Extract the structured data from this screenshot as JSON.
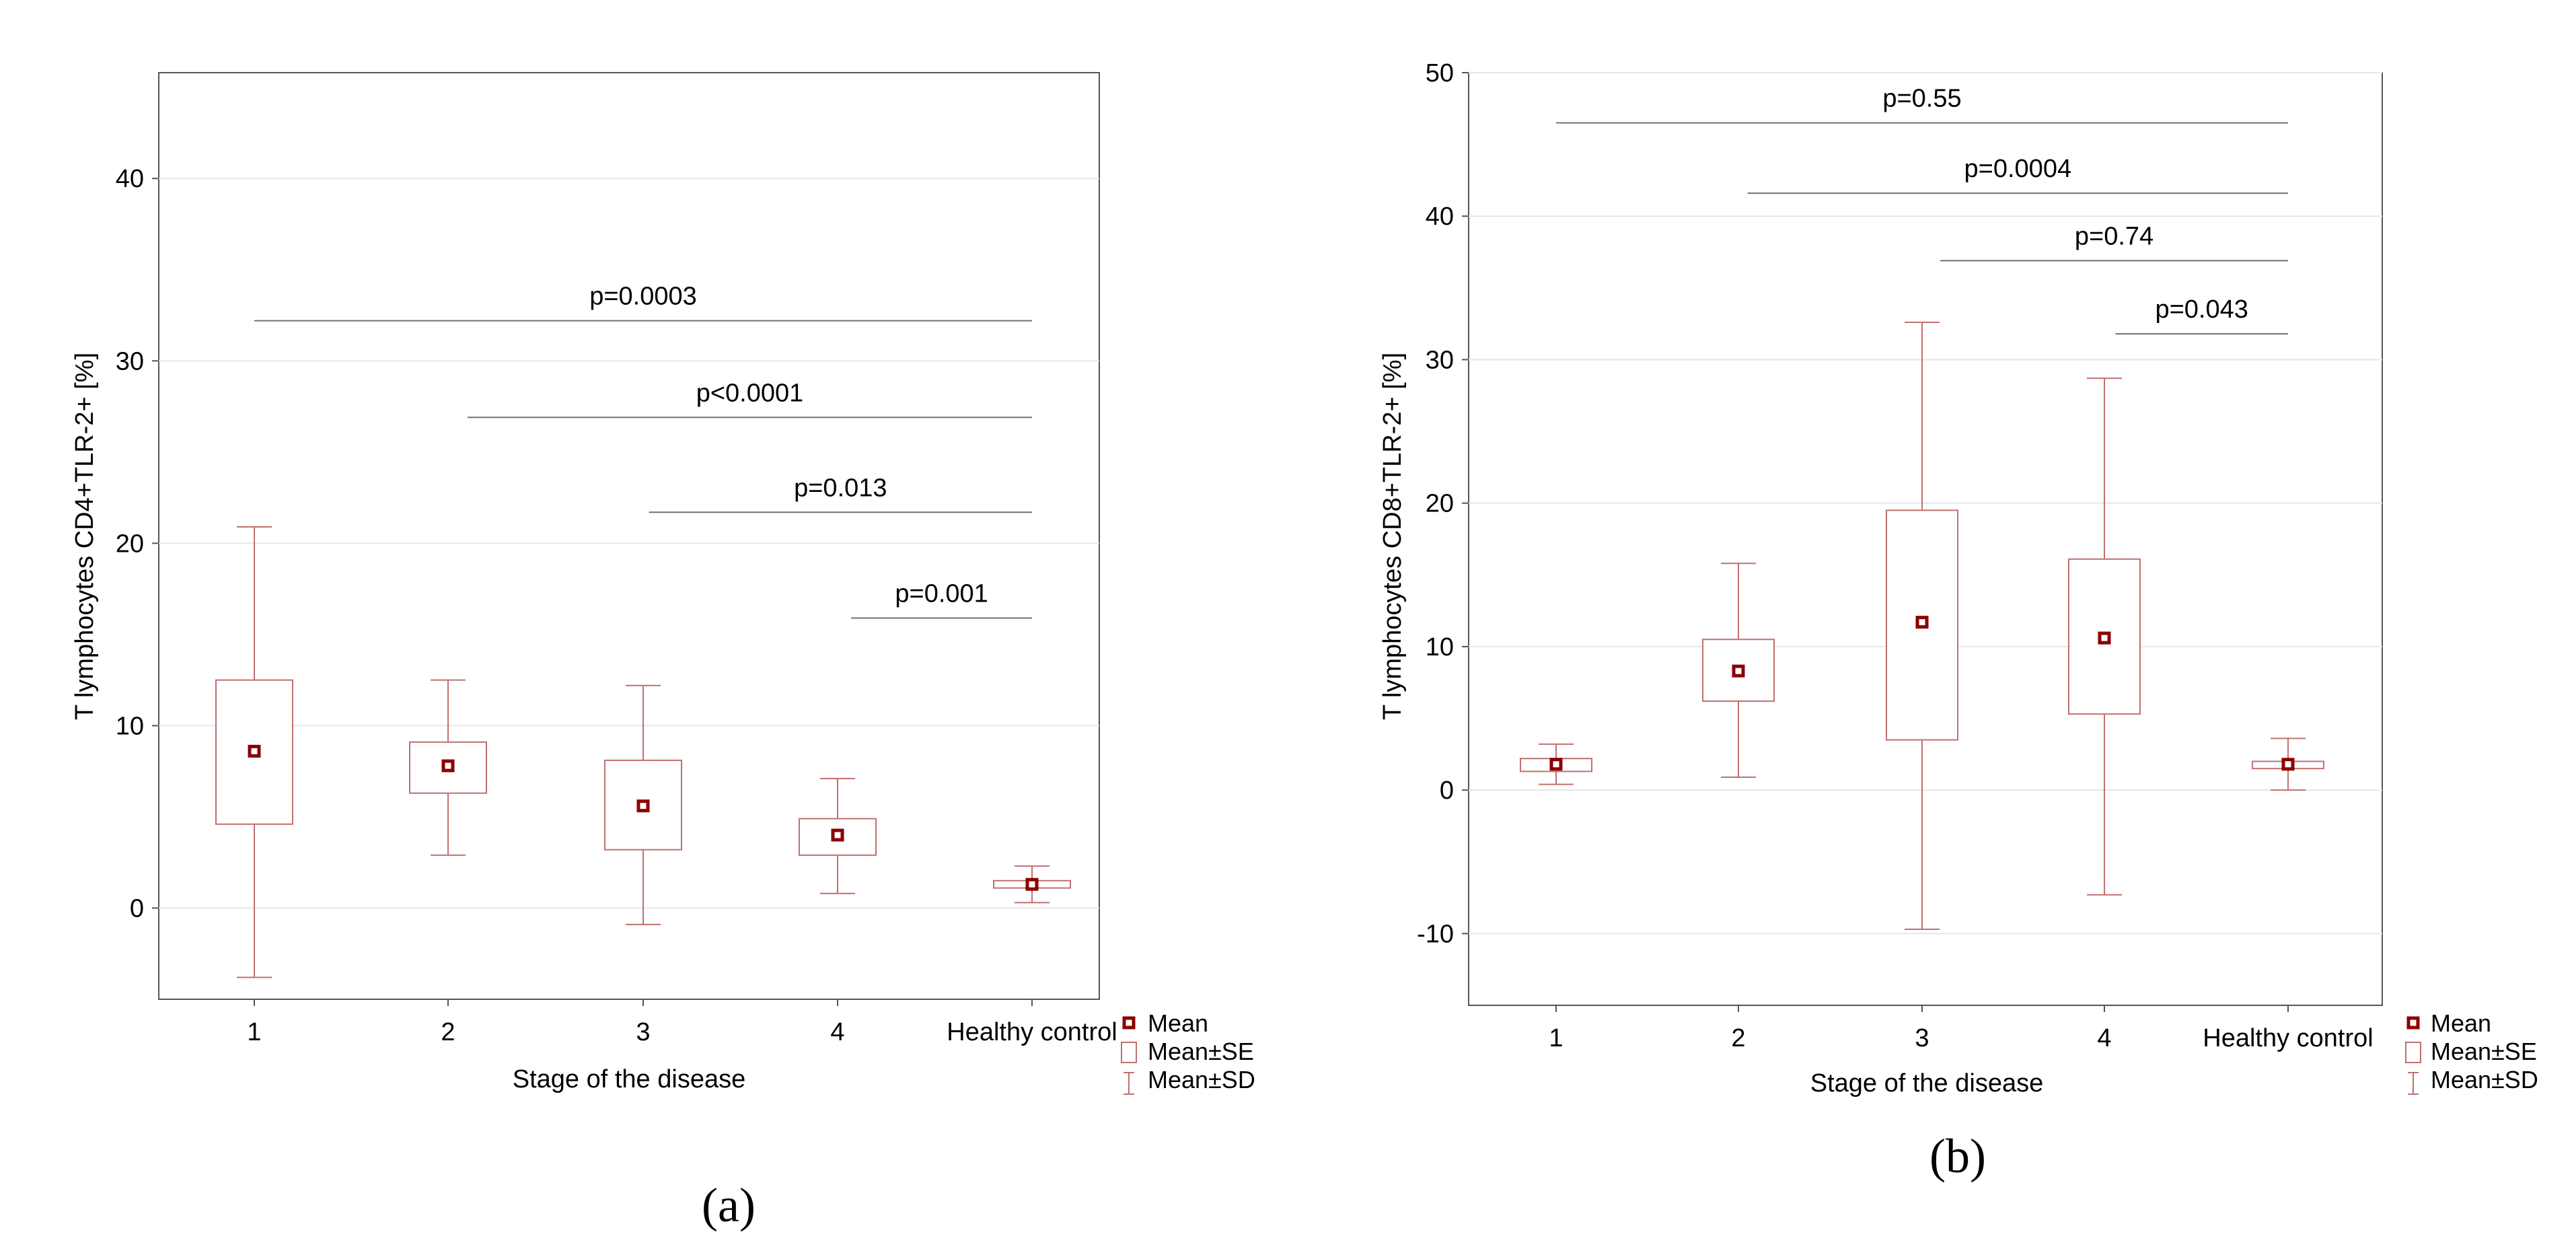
{
  "colors": {
    "box": "#c07070",
    "mean": "#8b0000",
    "grid": "#e6e6e6",
    "axis": "#555555",
    "annot": "#707070",
    "text": "#000000"
  },
  "legend": {
    "mean_label": "Mean",
    "se_label": "Mean±SE",
    "sd_label": "Mean±SD"
  },
  "chart_data": [
    {
      "type": "box",
      "caption": "(a)",
      "ylabel": "T lymphocytes CD4+TLR-2+ [%]",
      "xlabel": "Stage of the disease",
      "categories": [
        "1",
        "2",
        "3",
        "4",
        "Healthy control"
      ],
      "yticks": [
        "0",
        "10",
        "20",
        "30",
        "40"
      ],
      "ylim": [
        -5,
        45.8
      ],
      "mean": [
        8.6,
        7.8,
        5.6,
        4.0,
        1.3
      ],
      "se_low": [
        4.6,
        6.3,
        3.2,
        2.9,
        1.1
      ],
      "se_high": [
        12.5,
        9.1,
        8.1,
        4.9,
        1.5
      ],
      "sd_low": [
        -3.8,
        2.9,
        -0.9,
        0.8,
        0.3
      ],
      "sd_high": [
        20.9,
        12.5,
        12.2,
        7.1,
        2.3
      ],
      "annotations": [
        {
          "text": "p=0.0003",
          "x_from": 0.95,
          "x_to": 5.04,
          "y": 32.2
        },
        {
          "text": "p<0.0001",
          "x_from": 2.1,
          "x_to": 5.04,
          "y": 26.9
        },
        {
          "text": "p=0.013",
          "x_from": 3.03,
          "x_to": 5.02,
          "y": 21.7
        },
        {
          "text": "p=0.001",
          "x_from": 4.07,
          "x_to": 5.0,
          "y": 15.9
        }
      ]
    },
    {
      "type": "box",
      "caption": "(b)",
      "ylabel": "T lymphocytes CD8+TLR-2+ [%]",
      "xlabel": "Stage of the disease",
      "categories": [
        "1",
        "2",
        "3",
        "4",
        "Healthy control"
      ],
      "yticks": [
        "-10",
        "0",
        "10",
        "20",
        "30",
        "40",
        "50"
      ],
      "ylim": [
        -15,
        50
      ],
      "mean": [
        1.8,
        8.3,
        11.7,
        10.6,
        1.8
      ],
      "se_low": [
        1.3,
        6.2,
        3.5,
        5.3,
        1.5
      ],
      "se_high": [
        2.2,
        10.5,
        19.5,
        16.1,
        2.0
      ],
      "sd_low": [
        0.4,
        0.9,
        -9.7,
        -7.3,
        0.0
      ],
      "sd_high": [
        3.2,
        15.8,
        32.6,
        28.7,
        3.6
      ],
      "annotations": [
        {
          "text": "p=0.55",
          "x_from": 1.0,
          "x_to": 5.02,
          "y": 46.5
        },
        {
          "text": "p=0.0004",
          "x_from": 2.05,
          "x_to": 5.02,
          "y": 41.6
        },
        {
          "text": "p=0.74",
          "x_from": 3.1,
          "x_to": 5.02,
          "y": 36.9
        },
        {
          "text": "p=0.043",
          "x_from": 4.06,
          "x_to": 5.02,
          "y": 31.8
        }
      ]
    }
  ]
}
